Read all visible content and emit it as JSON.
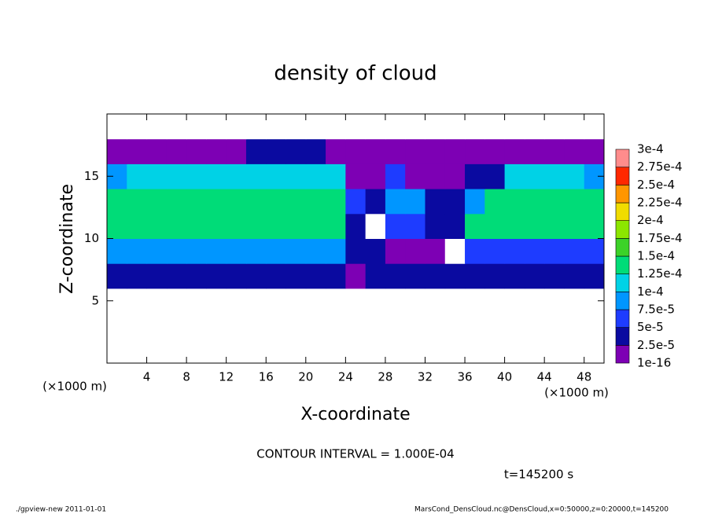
{
  "chart_data": {
    "type": "heatmap",
    "title": "density of cloud",
    "x_label": "X-coordinate",
    "y_label": "Z-coordinate",
    "x_unit_left": "(×1000 m)",
    "x_unit_right": "(×1000 m)",
    "contour_note": "CONTOUR INTERVAL = 1.000E-04",
    "time_label": "t=145200 s",
    "footer_left": "./gpview-new  2011-01-01",
    "footer_right": "MarsCond_DensCloud.nc@DensCloud,x=0:50000,z=0:20000,t=145200",
    "xlim": [
      0,
      50
    ],
    "ylim": [
      0,
      20
    ],
    "xticks": [
      4,
      8,
      12,
      16,
      20,
      24,
      28,
      32,
      36,
      40,
      44,
      48
    ],
    "yticks": [
      5,
      10,
      15
    ],
    "x": [
      1,
      3,
      5,
      7,
      9,
      11,
      13,
      15,
      17,
      19,
      21,
      23,
      25,
      27,
      29,
      31,
      33,
      35,
      37,
      39,
      41,
      43,
      45,
      47,
      49
    ],
    "z": [
      1,
      3,
      5,
      7,
      9,
      11,
      13,
      15,
      17,
      19
    ],
    "values": [
      [
        0,
        0,
        0,
        0,
        0,
        0,
        0,
        0,
        0,
        0,
        0,
        0,
        0,
        0,
        0,
        0,
        0,
        0,
        0,
        0,
        0,
        0,
        0,
        0,
        0
      ],
      [
        0,
        0,
        0,
        0,
        0,
        0,
        0,
        0,
        0,
        0,
        0,
        0,
        0,
        0,
        0,
        0,
        0,
        0,
        0,
        0,
        0,
        0,
        0,
        0,
        0
      ],
      [
        0,
        0,
        0,
        0,
        0,
        0,
        0,
        0,
        0,
        0,
        0,
        0,
        0,
        0,
        0,
        0,
        0,
        0,
        0,
        0,
        0,
        0,
        0,
        0,
        0
      ],
      [
        3e-05,
        4e-05,
        4e-05,
        4e-05,
        4e-05,
        4e-05,
        4e-05,
        4e-05,
        4e-05,
        4e-05,
        4e-05,
        4e-05,
        2e-05,
        3e-05,
        3e-05,
        3e-05,
        3e-05,
        3e-05,
        4e-05,
        4e-05,
        4e-05,
        4e-05,
        4e-05,
        4e-05,
        4e-05
      ],
      [
        8e-05,
        9e-05,
        9e-05,
        9e-05,
        9e-05,
        9e-05,
        9e-05,
        9e-05,
        9e-05,
        9e-05,
        9e-05,
        9e-05,
        3e-05,
        3e-05,
        2e-05,
        2e-05,
        2e-05,
        0,
        7e-05,
        7e-05,
        7e-05,
        7e-05,
        7e-05,
        7e-05,
        7e-05
      ],
      [
        0.00014,
        0.00014,
        0.00014,
        0.00014,
        0.00014,
        0.00014,
        0.00014,
        0.00014,
        0.00014,
        0.00014,
        0.00014,
        0.00014,
        3e-05,
        0,
        6e-05,
        6e-05,
        3e-05,
        3e-05,
        0.00014,
        0.00014,
        0.00014,
        0.00014,
        0.00014,
        0.00014,
        0.00014
      ],
      [
        0.000135,
        0.000135,
        0.000135,
        0.000135,
        0.000135,
        0.000135,
        0.000135,
        0.000135,
        0.000135,
        0.000135,
        0.000135,
        0.000135,
        6e-05,
        3e-05,
        9e-05,
        9e-05,
        4e-05,
        4e-05,
        8e-05,
        0.000135,
        0.000135,
        0.000135,
        0.000135,
        0.000135,
        0.000135
      ],
      [
        8e-05,
        0.00011,
        0.00011,
        0.00011,
        0.00012,
        0.00012,
        0.00012,
        0.00012,
        0.00012,
        0.00012,
        0.00012,
        0.0001,
        1e-05,
        1e-05,
        5e-05,
        1e-05,
        1e-05,
        1e-05,
        4e-05,
        4e-05,
        0.0001,
        0.0001,
        0.0001,
        0.0001,
        8e-05
      ],
      [
        1e-05,
        1e-05,
        1e-05,
        1e-05,
        1e-05,
        1e-05,
        1e-05,
        4e-05,
        4e-05,
        4e-05,
        4e-05,
        1e-05,
        1e-05,
        1e-05,
        1e-05,
        1e-05,
        1e-05,
        1e-05,
        2e-05,
        2e-05,
        2e-05,
        2e-05,
        2e-05,
        2e-05,
        2e-05
      ],
      [
        0,
        0,
        0,
        0,
        0,
        0,
        0,
        0,
        0,
        0,
        0,
        0,
        0,
        0,
        0,
        0,
        0,
        0,
        0,
        0,
        0,
        0,
        0,
        0,
        0
      ]
    ],
    "levels": [
      {
        "value": 1e-16,
        "label": "1e-16"
      },
      {
        "value": 2.5e-05,
        "label": "2.5e-5"
      },
      {
        "value": 5e-05,
        "label": "5e-5"
      },
      {
        "value": 7.5e-05,
        "label": "7.5e-5"
      },
      {
        "value": 0.0001,
        "label": "1e-4"
      },
      {
        "value": 0.000125,
        "label": "1.25e-4"
      },
      {
        "value": 0.00015,
        "label": "1.5e-4"
      },
      {
        "value": 0.000175,
        "label": "1.75e-4"
      },
      {
        "value": 0.0002,
        "label": "2e-4"
      },
      {
        "value": 0.000225,
        "label": "2.25e-4"
      },
      {
        "value": 0.00025,
        "label": "2.5e-4"
      },
      {
        "value": 0.000275,
        "label": "2.75e-4"
      },
      {
        "value": 0.0003,
        "label": "3e-4"
      }
    ],
    "colors": [
      "#7d00b4",
      "#0a0aa0",
      "#1e3cff",
      "#0096ff",
      "#00d2e6",
      "#00dc78",
      "#3cd228",
      "#8ce600",
      "#f0dc00",
      "#ff9600",
      "#ff2800",
      "#ff8c8c"
    ]
  }
}
